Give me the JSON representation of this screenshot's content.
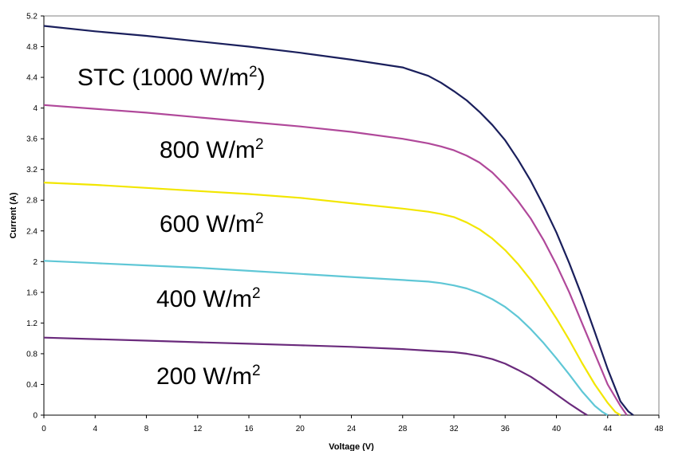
{
  "chart_data": {
    "type": "line",
    "title": "",
    "xlabel": "Voltage (V)",
    "ylabel": "Current (A)",
    "xlim": [
      0,
      48
    ],
    "ylim": [
      0,
      5.2
    ],
    "xticks": [
      0,
      4,
      8,
      12,
      16,
      20,
      24,
      28,
      32,
      36,
      40,
      44,
      48
    ],
    "xtick_labels": [
      "0",
      "4",
      "8",
      "12",
      "16",
      "20",
      "24",
      "28",
      "32",
      "36",
      "40",
      "44",
      "48"
    ],
    "yticks": [
      0,
      0.4,
      0.8,
      1.2,
      1.6,
      2,
      2.4,
      2.8,
      3.2,
      3.6,
      4,
      4.4,
      4.8,
      5.2
    ],
    "ytick_labels": [
      "0",
      "0.4",
      "0.8",
      "1.2",
      "1.6",
      "2",
      "2.4",
      "2.8",
      "3.2",
      "3.6",
      "4",
      "4.4",
      "4.8",
      "5.2"
    ],
    "grid": false,
    "legend": "none",
    "series": [
      {
        "name": "STC (1000 W/m2)",
        "label_main": "STC (1000 W/m",
        "label_sup": "2",
        "label_tail": ")",
        "color": "#1a1f5c",
        "x": [
          0,
          4,
          8,
          12,
          16,
          20,
          24,
          28,
          30,
          31,
          32,
          33,
          34,
          35,
          36,
          37,
          38,
          39,
          40,
          41,
          42,
          43,
          44,
          45,
          45.6,
          46
        ],
        "y": [
          5.07,
          5.0,
          4.94,
          4.87,
          4.8,
          4.72,
          4.63,
          4.53,
          4.42,
          4.33,
          4.22,
          4.1,
          3.95,
          3.78,
          3.58,
          3.33,
          3.05,
          2.73,
          2.38,
          1.98,
          1.55,
          1.08,
          0.6,
          0.18,
          0.05,
          0
        ]
      },
      {
        "name": "800 W/m2",
        "label_main": "800 W/m",
        "label_sup": "2",
        "label_tail": "",
        "color": "#b0489a",
        "x": [
          0,
          4,
          8,
          12,
          16,
          20,
          24,
          28,
          30,
          31,
          32,
          33,
          34,
          35,
          36,
          37,
          38,
          39,
          40,
          41,
          42,
          43,
          44,
          45,
          45.5
        ],
        "y": [
          4.04,
          3.99,
          3.94,
          3.88,
          3.82,
          3.76,
          3.69,
          3.6,
          3.54,
          3.5,
          3.45,
          3.38,
          3.29,
          3.16,
          2.99,
          2.79,
          2.56,
          2.28,
          1.96,
          1.6,
          1.2,
          0.8,
          0.4,
          0.12,
          0
        ]
      },
      {
        "name": "600 W/m2",
        "label_main": "600 W/m",
        "label_sup": "2",
        "label_tail": "",
        "color": "#f2e600",
        "x": [
          0,
          4,
          8,
          12,
          16,
          20,
          24,
          28,
          30,
          31,
          32,
          33,
          34,
          35,
          36,
          37,
          38,
          39,
          40,
          41,
          42,
          43,
          44,
          44.6,
          45
        ],
        "y": [
          3.03,
          3.0,
          2.96,
          2.92,
          2.88,
          2.83,
          2.76,
          2.69,
          2.65,
          2.62,
          2.58,
          2.51,
          2.42,
          2.3,
          2.15,
          1.97,
          1.76,
          1.52,
          1.26,
          0.98,
          0.68,
          0.4,
          0.16,
          0.04,
          0
        ]
      },
      {
        "name": "400 W/m2",
        "label_main": "400 W/m",
        "label_sup": "2",
        "label_tail": "",
        "color": "#5fc7d6",
        "x": [
          0,
          4,
          8,
          12,
          16,
          20,
          24,
          28,
          30,
          31,
          32,
          33,
          34,
          35,
          36,
          37,
          38,
          39,
          40,
          41,
          42,
          43,
          43.6,
          44
        ],
        "y": [
          2.01,
          1.98,
          1.95,
          1.92,
          1.88,
          1.84,
          1.8,
          1.76,
          1.74,
          1.72,
          1.69,
          1.65,
          1.59,
          1.51,
          1.41,
          1.28,
          1.12,
          0.94,
          0.74,
          0.53,
          0.31,
          0.12,
          0.04,
          0
        ]
      },
      {
        "name": "200 W/m2",
        "label_main": "200 W/m",
        "label_sup": "2",
        "label_tail": "",
        "color": "#6a2a7c",
        "x": [
          0,
          4,
          8,
          12,
          16,
          20,
          24,
          28,
          30,
          32,
          33,
          34,
          35,
          36,
          37,
          38,
          39,
          40,
          41,
          42,
          42.4
        ],
        "y": [
          1.01,
          0.99,
          0.97,
          0.95,
          0.93,
          0.91,
          0.89,
          0.86,
          0.84,
          0.82,
          0.8,
          0.77,
          0.73,
          0.67,
          0.59,
          0.5,
          0.39,
          0.27,
          0.15,
          0.04,
          0
        ]
      }
    ]
  }
}
